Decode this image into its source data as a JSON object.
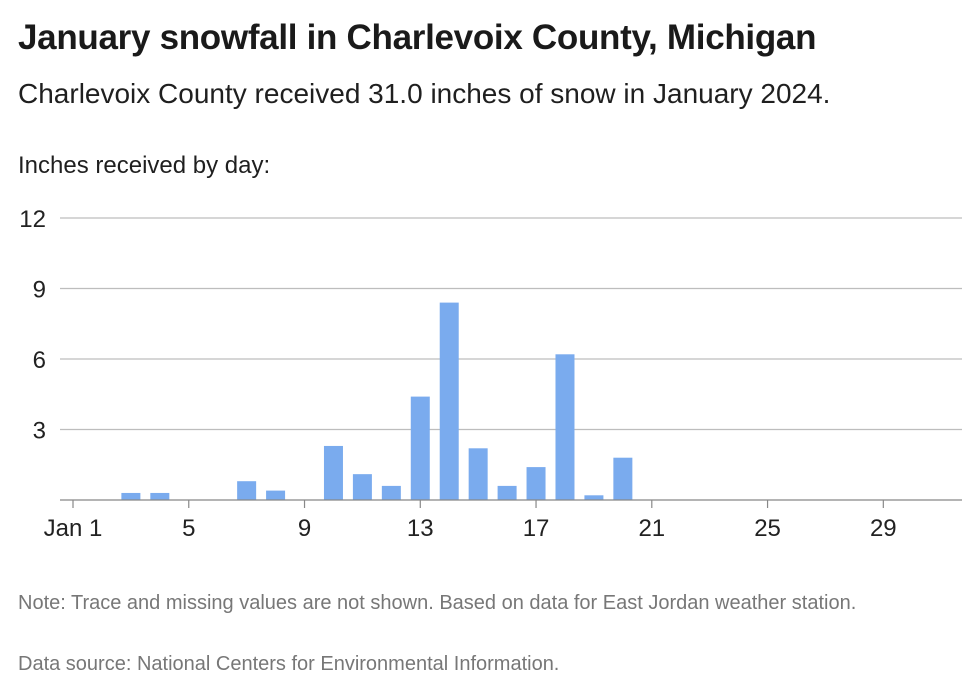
{
  "chart_data": {
    "type": "bar",
    "title": "January snowfall in Charlevoix County, Michigan",
    "subtitle": "Charlevoix County received 31.0 inches of snow in January 2024.",
    "ylabel": "Inches received by day:",
    "xlabel": "",
    "x": [
      1,
      2,
      3,
      4,
      5,
      6,
      7,
      8,
      9,
      10,
      11,
      12,
      13,
      14,
      15,
      16,
      17,
      18,
      19,
      20,
      21,
      22,
      23,
      24,
      25,
      26,
      27,
      28,
      29,
      30,
      31
    ],
    "values": [
      0,
      0,
      0.3,
      0.3,
      0,
      0,
      0.8,
      0.4,
      0,
      2.3,
      1.1,
      0.6,
      4.4,
      8.4,
      2.2,
      0.6,
      1.4,
      6.2,
      0.2,
      1.8,
      0,
      0,
      0,
      0,
      0,
      0,
      0,
      0,
      0,
      0,
      0
    ],
    "x_tick_values": [
      1,
      5,
      9,
      13,
      17,
      21,
      25,
      29
    ],
    "x_tick_labels": [
      "Jan 1",
      "5",
      "9",
      "13",
      "17",
      "21",
      "25",
      "29"
    ],
    "y_ticks": [
      3,
      6,
      9,
      12
    ],
    "ylim": [
      0,
      12
    ],
    "grid": true,
    "legend": "none",
    "bar_color": "#7aabee"
  },
  "note": "Note: Trace and missing values are not shown. Based on data for East Jordan weather station.",
  "source": "Data source: National Centers for Environmental Information."
}
